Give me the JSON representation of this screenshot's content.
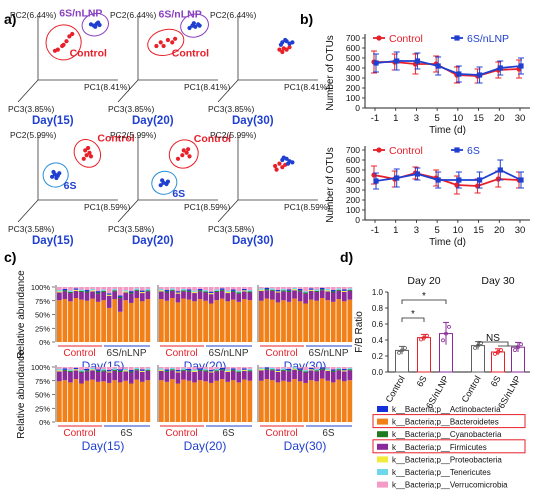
{
  "panels": {
    "a": "a)",
    "b": "b)",
    "c": "c)",
    "d": "d)"
  },
  "colors": {
    "control": "#e8202a",
    "treat": "#1f3fd1",
    "ellipse_control": "#e8202a",
    "ellipse_nlnp": "#8a3fc0",
    "ellipse_6s": "#2a8fd6",
    "day_label": "#1f3fd1",
    "actinobacteria": "#1530d8",
    "bacteroidetes": "#f28018",
    "cyanobacteria": "#1f7a1f",
    "firmicutes": "#8a2a9a",
    "proteobacteria": "#f4ea3a",
    "tenericutes": "#6fd7ea",
    "verrucomicrobia": "#f39ac6"
  },
  "chart_data": [
    {
      "id": "a-top",
      "type": "scatter",
      "title": "PCoA Control vs 6S/nLNP",
      "group_labels": [
        "Control",
        "6S/nLNP"
      ],
      "subplots": [
        {
          "day": "Day(15)",
          "pc1": "PC1(8.41%)",
          "pc2": "PC2(6.44%)",
          "pc3": "PC3(3.85%)",
          "control": [
            [
              0.18,
              0.42
            ],
            [
              0.22,
              0.44
            ],
            [
              0.28,
              0.5
            ],
            [
              0.34,
              0.58
            ],
            [
              0.38,
              0.66
            ],
            [
              0.42,
              0.7
            ],
            [
              0.3,
              0.52
            ]
          ],
          "treat": [
            [
              0.72,
              0.84
            ],
            [
              0.76,
              0.87
            ],
            [
              0.8,
              0.85
            ],
            [
              0.74,
              0.82
            ],
            [
              0.68,
              0.86
            ],
            [
              0.78,
              0.89
            ]
          ]
        },
        {
          "day": "Day(20)",
          "pc1": "PC1(8.41%)",
          "pc2": "PC2(6.44%)",
          "pc3": "PC3(3.85%)",
          "control": [
            [
              0.2,
              0.5
            ],
            [
              0.26,
              0.56
            ],
            [
              0.3,
              0.5
            ],
            [
              0.36,
              0.6
            ],
            [
              0.42,
              0.56
            ],
            [
              0.46,
              0.62
            ]
          ],
          "treat": [
            [
              0.66,
              0.8
            ],
            [
              0.7,
              0.84
            ],
            [
              0.74,
              0.82
            ],
            [
              0.78,
              0.86
            ],
            [
              0.72,
              0.88
            ],
            [
              0.8,
              0.84
            ]
          ]
        },
        {
          "day": "Day(30)",
          "pc1": "PC1(8.41%)",
          "pc2": "PC2(6.44%)",
          "pc3": "PC3(3.85%)",
          "control": [
            [
              0.52,
              0.44
            ],
            [
              0.58,
              0.46
            ],
            [
              0.62,
              0.44
            ],
            [
              0.56,
              0.4
            ],
            [
              0.66,
              0.48
            ]
          ],
          "treat": [
            [
              0.56,
              0.56
            ],
            [
              0.62,
              0.58
            ],
            [
              0.66,
              0.54
            ],
            [
              0.7,
              0.56
            ],
            [
              0.6,
              0.6
            ],
            [
              0.54,
              0.52
            ]
          ]
        }
      ]
    },
    {
      "id": "a-bottom",
      "type": "scatter",
      "title": "PCoA Control vs 6S",
      "group_labels": [
        "Control",
        "6S"
      ],
      "subplots": [
        {
          "day": "Day(15)",
          "pc1": "PC1(8.59%)",
          "pc2": "PC2(5.99%)",
          "pc3": "PC3(3.58%)",
          "control": [
            [
              0.58,
              0.62
            ],
            [
              0.62,
              0.68
            ],
            [
              0.66,
              0.72
            ],
            [
              0.6,
              0.76
            ],
            [
              0.64,
              0.8
            ],
            [
              0.68,
              0.66
            ]
          ],
          "treat": [
            [
              0.14,
              0.32
            ],
            [
              0.18,
              0.36
            ],
            [
              0.22,
              0.34
            ],
            [
              0.16,
              0.4
            ],
            [
              0.24,
              0.38
            ],
            [
              0.2,
              0.3
            ]
          ]
        },
        {
          "day": "Day(20)",
          "pc1": "PC1(8.59%)",
          "pc2": "PC2(5.99%)",
          "pc3": "PC3(3.58%)",
          "control": [
            [
              0.5,
              0.62
            ],
            [
              0.56,
              0.68
            ],
            [
              0.62,
              0.72
            ],
            [
              0.66,
              0.66
            ],
            [
              0.58,
              0.76
            ],
            [
              0.64,
              0.78
            ]
          ],
          "treat": [
            [
              0.26,
              0.18
            ],
            [
              0.3,
              0.22
            ],
            [
              0.34,
              0.2
            ],
            [
              0.28,
              0.26
            ],
            [
              0.36,
              0.24
            ]
          ]
        },
        {
          "day": "Day(30)",
          "pc1": "PC1(8.59%)",
          "pc2": "PC2(5.99%)",
          "pc3": "PC3(3.58%)",
          "control": [
            [
              0.46,
              0.5
            ],
            [
              0.52,
              0.54
            ],
            [
              0.56,
              0.48
            ],
            [
              0.6,
              0.52
            ],
            [
              0.48,
              0.44
            ]
          ],
          "treat": [
            [
              0.56,
              0.6
            ],
            [
              0.62,
              0.62
            ],
            [
              0.66,
              0.58
            ],
            [
              0.7,
              0.56
            ],
            [
              0.58,
              0.64
            ],
            [
              0.64,
              0.54
            ]
          ]
        }
      ]
    },
    {
      "id": "b-top",
      "type": "line",
      "xlabel": "Time (d)",
      "ylabel": "Number of OTUs",
      "x": [
        "-1",
        "1",
        "3",
        "5",
        "10",
        "15",
        "20",
        "30"
      ],
      "ylim": [
        0,
        700
      ],
      "yticks": [
        "0",
        "100",
        "200",
        "300",
        "400",
        "500",
        "600",
        "700"
      ],
      "series": [
        {
          "name": "Control",
          "values": [
            460,
            460,
            440,
            440,
            330,
            320,
            380,
            390
          ],
          "err": [
            110,
            80,
            100,
            80,
            80,
            70,
            80,
            90
          ]
        },
        {
          "name": "6S/nLNP",
          "values": [
            450,
            470,
            470,
            420,
            340,
            330,
            400,
            420
          ],
          "err": [
            90,
            90,
            80,
            90,
            80,
            80,
            70,
            80
          ]
        }
      ]
    },
    {
      "id": "b-bottom",
      "type": "line",
      "xlabel": "Time (d)",
      "ylabel": "Number of OTUs",
      "x": [
        "-1",
        "1",
        "3",
        "5",
        "10",
        "15",
        "20",
        "30"
      ],
      "ylim": [
        0,
        700
      ],
      "yticks": [
        "0",
        "100",
        "200",
        "300",
        "400",
        "500",
        "600",
        "700"
      ],
      "series": [
        {
          "name": "Control",
          "values": [
            450,
            410,
            470,
            420,
            350,
            340,
            410,
            400
          ],
          "err": [
            90,
            80,
            60,
            80,
            90,
            70,
            80,
            80
          ]
        },
        {
          "name": "6S",
          "values": [
            390,
            420,
            460,
            400,
            400,
            400,
            500,
            400
          ],
          "err": [
            80,
            90,
            60,
            80,
            80,
            80,
            100,
            80
          ]
        }
      ]
    },
    {
      "id": "c",
      "type": "bar",
      "stacked": true,
      "ylabel": "Relative abundance",
      "yticks": [
        "100%",
        "75%",
        "50%",
        "25%",
        "0%"
      ],
      "rows": [
        {
          "groups_label": [
            "Control",
            "6S/nLNP"
          ],
          "days": [
            "Day(15)",
            "Day(20)",
            "Day(30)"
          ],
          "bars_per_day": 17,
          "bacteroidetes": [
            0.76,
            0.78,
            0.74,
            0.8,
            0.77,
            0.75,
            0.79,
            0.73,
            0.76,
            0.62,
            0.78,
            0.55,
            0.76,
            0.71,
            0.8,
            0.74,
            0.78,
            0.78,
            0.75,
            0.8,
            0.72,
            0.79,
            0.77,
            0.74,
            0.78,
            0.75,
            0.7,
            0.76,
            0.79,
            0.74,
            0.77,
            0.73,
            0.78,
            0.76,
            0.75,
            0.79,
            0.77,
            0.72,
            0.76,
            0.73,
            0.79,
            0.74,
            0.7,
            0.77,
            0.75,
            0.8,
            0.76,
            0.73,
            0.78,
            0.74,
            0.77
          ],
          "firmicutes_top": [
            0.9,
            0.92,
            0.89,
            0.93,
            0.91,
            0.9,
            0.92,
            0.88,
            0.91,
            0.84,
            0.92,
            0.8,
            0.9,
            0.88,
            0.93,
            0.89,
            0.92,
            0.92,
            0.9,
            0.93,
            0.88,
            0.92,
            0.91,
            0.89,
            0.92,
            0.9,
            0.87,
            0.91,
            0.93,
            0.89,
            0.91,
            0.88,
            0.92,
            0.9,
            0.93,
            0.94,
            0.93,
            0.9,
            0.92,
            0.91,
            0.94,
            0.92,
            0.88,
            0.93,
            0.91,
            0.94,
            0.92,
            0.9,
            0.93,
            0.91,
            0.93
          ]
        },
        {
          "groups_label": [
            "Control",
            "6S"
          ],
          "days": [
            "Day(15)",
            "Day(20)",
            "Day(30)"
          ],
          "bars_per_day": 17,
          "bacteroidetes": [
            0.74,
            0.76,
            0.72,
            0.78,
            0.7,
            0.75,
            0.77,
            0.73,
            0.74,
            0.71,
            0.76,
            0.72,
            0.75,
            0.7,
            0.77,
            0.73,
            0.76,
            0.76,
            0.73,
            0.78,
            0.7,
            0.77,
            0.75,
            0.72,
            0.76,
            0.74,
            0.71,
            0.75,
            0.78,
            0.73,
            0.76,
            0.72,
            0.77,
            0.75,
            0.75,
            0.78,
            0.76,
            0.72,
            0.75,
            0.73,
            0.78,
            0.74,
            0.71,
            0.76,
            0.74,
            0.79,
            0.75,
            0.72,
            0.77,
            0.74,
            0.76
          ],
          "firmicutes_top": [
            0.92,
            0.93,
            0.91,
            0.94,
            0.9,
            0.92,
            0.94,
            0.91,
            0.92,
            0.9,
            0.93,
            0.91,
            0.92,
            0.9,
            0.94,
            0.91,
            0.93,
            0.93,
            0.91,
            0.94,
            0.9,
            0.93,
            0.92,
            0.91,
            0.93,
            0.92,
            0.9,
            0.92,
            0.94,
            0.91,
            0.93,
            0.9,
            0.93,
            0.92,
            0.94,
            0.95,
            0.94,
            0.91,
            0.93,
            0.92,
            0.95,
            0.93,
            0.9,
            0.94,
            0.92,
            0.95,
            0.93,
            0.91,
            0.94,
            0.92,
            0.94
          ]
        }
      ]
    },
    {
      "id": "d",
      "type": "bar",
      "ylabel": "F/B Ratio",
      "ylim": [
        0,
        1.0
      ],
      "yticks": [
        "0.0",
        "0.2",
        "0.4",
        "0.6",
        "0.8",
        "1.0"
      ],
      "categories": [
        "Control",
        "6S",
        "6S/nLNP",
        "Control",
        "6S",
        "6S/nLNP"
      ],
      "values": [
        0.27,
        0.43,
        0.48,
        0.33,
        0.25,
        0.31
      ],
      "err": [
        0.05,
        0.04,
        0.14,
        0.05,
        0.04,
        0.06
      ],
      "bar_colors": [
        "#606060",
        "#e8202a",
        "#8a2a9a",
        "#606060",
        "#e8202a",
        "#8a2a9a"
      ],
      "group_titles": [
        "Day 20",
        "Day 30"
      ],
      "significance": [
        "*",
        "*",
        "NS"
      ],
      "legend": [
        {
          "label": "k__Bacteria;p__Actinobacteria",
          "color": "#1530d8",
          "boxed": false
        },
        {
          "label": "k__Bacteria;p__Bacteroidetes",
          "color": "#f28018",
          "boxed": true
        },
        {
          "label": "k__Bacteria;p__Cyanobacteria",
          "color": "#1f7a1f",
          "boxed": false
        },
        {
          "label": "k__Bacteria;p__Firmicutes",
          "color": "#8a2a9a",
          "boxed": true
        },
        {
          "label": "k__Bacteria;p__Proteobacteria",
          "color": "#f4ea3a",
          "boxed": false
        },
        {
          "label": "k__Bacteria;p__Tenericutes",
          "color": "#6fd7ea",
          "boxed": false
        },
        {
          "label": "k__Bacteria;p__Verrucomicrobia",
          "color": "#f39ac6",
          "boxed": false
        }
      ]
    }
  ]
}
